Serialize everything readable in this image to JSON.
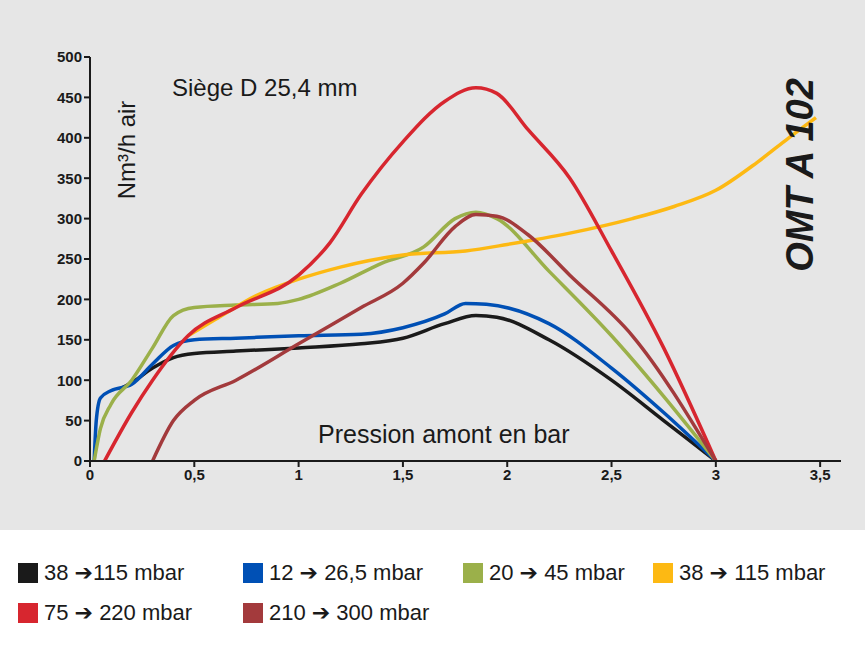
{
  "chart_data": {
    "type": "line",
    "title": "Siège D 25,4 mm",
    "annotation": "OMT A 102",
    "x_label": "Pression amont en bar",
    "y_label": "Nm³/h air",
    "xlim": [
      0,
      3.6
    ],
    "xticks": [
      0,
      {
        "value": 0.5,
        "label": "0,5"
      },
      1,
      {
        "value": 1.5,
        "label": "1,5"
      },
      2,
      {
        "value": 2.5,
        "label": "2,5"
      },
      3,
      {
        "value": 3.5,
        "label": "3,5"
      }
    ],
    "ylim": [
      0,
      500
    ],
    "yticks": [
      0,
      50,
      100,
      150,
      200,
      250,
      300,
      350,
      400,
      450,
      500
    ],
    "grid": false,
    "legend": "bottom",
    "series": [
      {
        "name": "38 ➔115 mbar",
        "color": "#1a1a1a",
        "x": [
          0.15,
          0.2,
          0.3,
          0.4,
          0.5,
          0.7,
          1,
          1.3,
          1.5,
          1.7,
          1.85,
          1.95,
          2.2,
          2.5,
          2.75,
          3
        ],
        "values": [
          90,
          97,
          115,
          128,
          133,
          136,
          140,
          145,
          152,
          170,
          180,
          178,
          150,
          100,
          50,
          0
        ]
      },
      {
        "name": "12 ➔ 26,5 mbar",
        "color": "#0050b5",
        "x": [
          0.02,
          0.03,
          0.05,
          0.1,
          0.2,
          0.3,
          0.4,
          0.5,
          0.7,
          1,
          1.3,
          1.5,
          1.7,
          1.8,
          1.9,
          2.2,
          2.5,
          2.75,
          3
        ],
        "values": [
          0,
          50,
          78,
          87,
          95,
          120,
          143,
          150,
          152,
          155,
          157,
          165,
          182,
          195,
          194,
          170,
          115,
          60,
          0
        ]
      },
      {
        "name": "20 ➔ 45 mbar",
        "color": "#9bb04a",
        "x": [
          0.02,
          0.05,
          0.1,
          0.2,
          0.3,
          0.4,
          0.5,
          0.7,
          0.9,
          1,
          1.2,
          1.4,
          1.6,
          1.75,
          1.85,
          1.95,
          2.2,
          2.5,
          2.75,
          3
        ],
        "values": [
          0,
          40,
          70,
          100,
          140,
          180,
          190,
          193,
          195,
          200,
          220,
          245,
          265,
          300,
          308,
          300,
          235,
          155,
          80,
          0
        ]
      },
      {
        "name": "38 ➔ 115 mbar",
        "color": "#fdb913",
        "x": [
          0.47,
          0.6,
          0.8,
          1,
          1.2,
          1.5,
          1.8,
          2,
          2.3,
          2.6,
          2.8,
          3,
          3.2,
          3.35,
          3.48
        ],
        "values": [
          155,
          175,
          205,
          225,
          240,
          255,
          260,
          268,
          282,
          300,
          315,
          335,
          370,
          400,
          425
        ]
      },
      {
        "name": "75 ➔ 220 mbar",
        "color": "#d7262f",
        "x": [
          0.07,
          0.2,
          0.3,
          0.47,
          0.7,
          1,
          1.15,
          1.3,
          1.5,
          1.7,
          1.85,
          1.95,
          2.1,
          2.3,
          2.5,
          2.75,
          3
        ],
        "values": [
          0,
          60,
          100,
          155,
          190,
          230,
          270,
          330,
          395,
          445,
          462,
          455,
          410,
          350,
          260,
          140,
          0
        ]
      },
      {
        "name": "210 ➔ 300 mbar",
        "color": "#a33a3c",
        "x": [
          0.3,
          0.4,
          0.5,
          0.7,
          1,
          1.3,
          1.5,
          1.6,
          1.75,
          1.85,
          1.95,
          2.1,
          2.3,
          2.6,
          3
        ],
        "values": [
          0,
          50,
          75,
          100,
          145,
          190,
          220,
          245,
          290,
          305,
          303,
          280,
          230,
          155,
          0
        ]
      }
    ]
  }
}
